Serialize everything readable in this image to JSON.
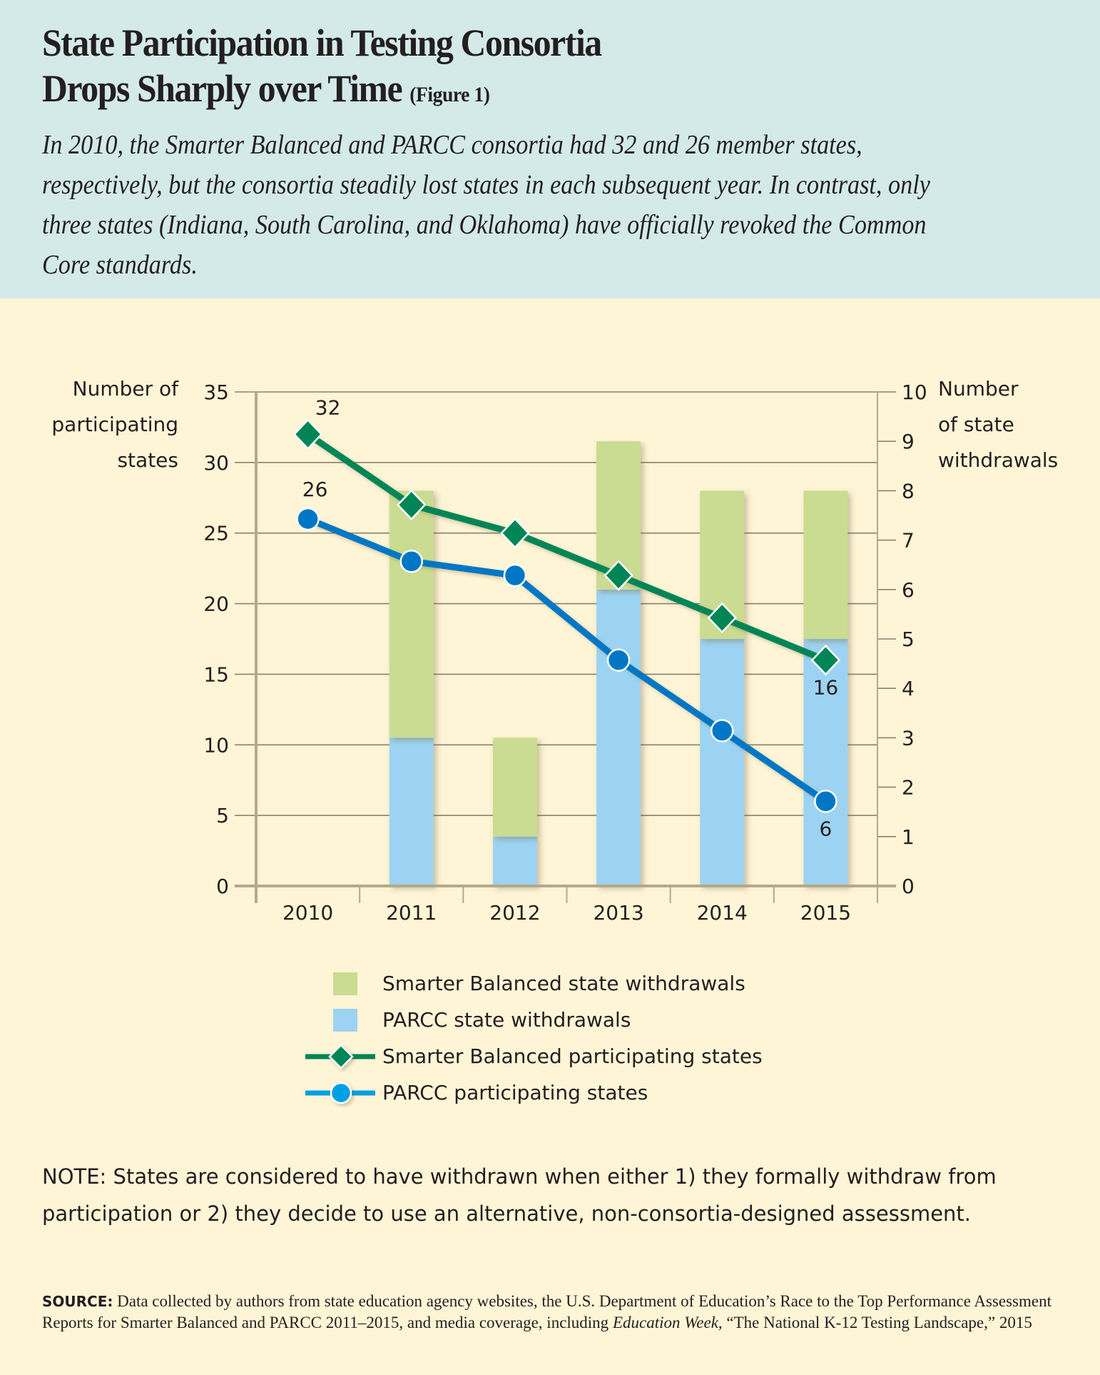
{
  "header": {
    "title_line1": "State Participation in Testing Consortia",
    "title_line2": "Drops Sharply over Time",
    "figure_label": "(Figure 1)",
    "intro": "In 2010, the Smarter Balanced and PARCC consortia had 32 and 26 member states, respectively, but the consortia steadily lost states in each subsequent year. In contrast, only three states (Indiana, South Carolina, and Oklahoma) have officially revoked the Common Core standards."
  },
  "colors": {
    "header_bg": "#d4eae8",
    "body_bg": "#fef4d6",
    "sb_withdrawals": "#c9dc91",
    "parcc_withdrawals": "#9dd3f2",
    "sb_line": "#008556",
    "parcc_line": "#0077c4",
    "parcc_legend": "#009fe3",
    "grid": "#8a8170"
  },
  "chart_data": {
    "type": "bar+line",
    "categories": [
      "2010",
      "2011",
      "2012",
      "2013",
      "2014",
      "2015"
    ],
    "left_axis": {
      "title_lines": [
        "Number of",
        "participating",
        "states"
      ],
      "ticks": [
        "0",
        "5",
        "10",
        "15",
        "20",
        "25",
        "30",
        "35"
      ],
      "range": [
        0,
        35
      ]
    },
    "right_axis": {
      "title_lines": [
        "Number",
        "of state",
        "withdrawals"
      ],
      "ticks": [
        "0",
        "1",
        "2",
        "3",
        "4",
        "5",
        "6",
        "7",
        "8",
        "9",
        "10"
      ],
      "range": [
        0,
        10
      ]
    },
    "bar_series": [
      {
        "name": "PARCC state withdrawals",
        "axis": "right",
        "values": [
          0,
          3,
          1,
          6,
          5,
          5
        ]
      },
      {
        "name": "Smarter Balanced state withdrawals",
        "axis": "right",
        "values": [
          0,
          5,
          2,
          3,
          3,
          3
        ]
      }
    ],
    "line_series": [
      {
        "name": "Smarter Balanced participating states",
        "axis": "left",
        "marker": "diamond",
        "values": [
          32,
          27,
          25,
          22,
          19,
          16
        ]
      },
      {
        "name": "PARCC participating states",
        "axis": "left",
        "marker": "circle",
        "values": [
          26,
          23,
          22,
          16,
          11,
          6
        ]
      }
    ],
    "data_labels": [
      {
        "series": "Smarter Balanced participating states",
        "category": "2010",
        "text": "32"
      },
      {
        "series": "PARCC participating states",
        "category": "2010",
        "text": "26"
      },
      {
        "series": "Smarter Balanced participating states",
        "category": "2015",
        "text": "16"
      },
      {
        "series": "PARCC participating states",
        "category": "2015",
        "text": "6"
      }
    ],
    "grid": true,
    "legend_position": "bottom",
    "legend": [
      "Smarter Balanced state withdrawals",
      "PARCC state withdrawals",
      "Smarter Balanced participating states",
      "PARCC participating states"
    ]
  },
  "note": "NOTE: States are considered to have withdrawn when either 1) they formally withdraw from participation or 2) they decide to use an alternative, non-consortia-designed assessment.",
  "source": {
    "label": "SOURCE:",
    "text": "Data collected by authors from state education agency websites, the U.S. Department of Education’s Race to the Top Performance Assessment Reports for Smarter Balanced and PARCC 2011–2015, and media coverage, including",
    "publication": "Education Week,",
    "tail": "“The National K-12 Testing Landscape,” 2015"
  }
}
